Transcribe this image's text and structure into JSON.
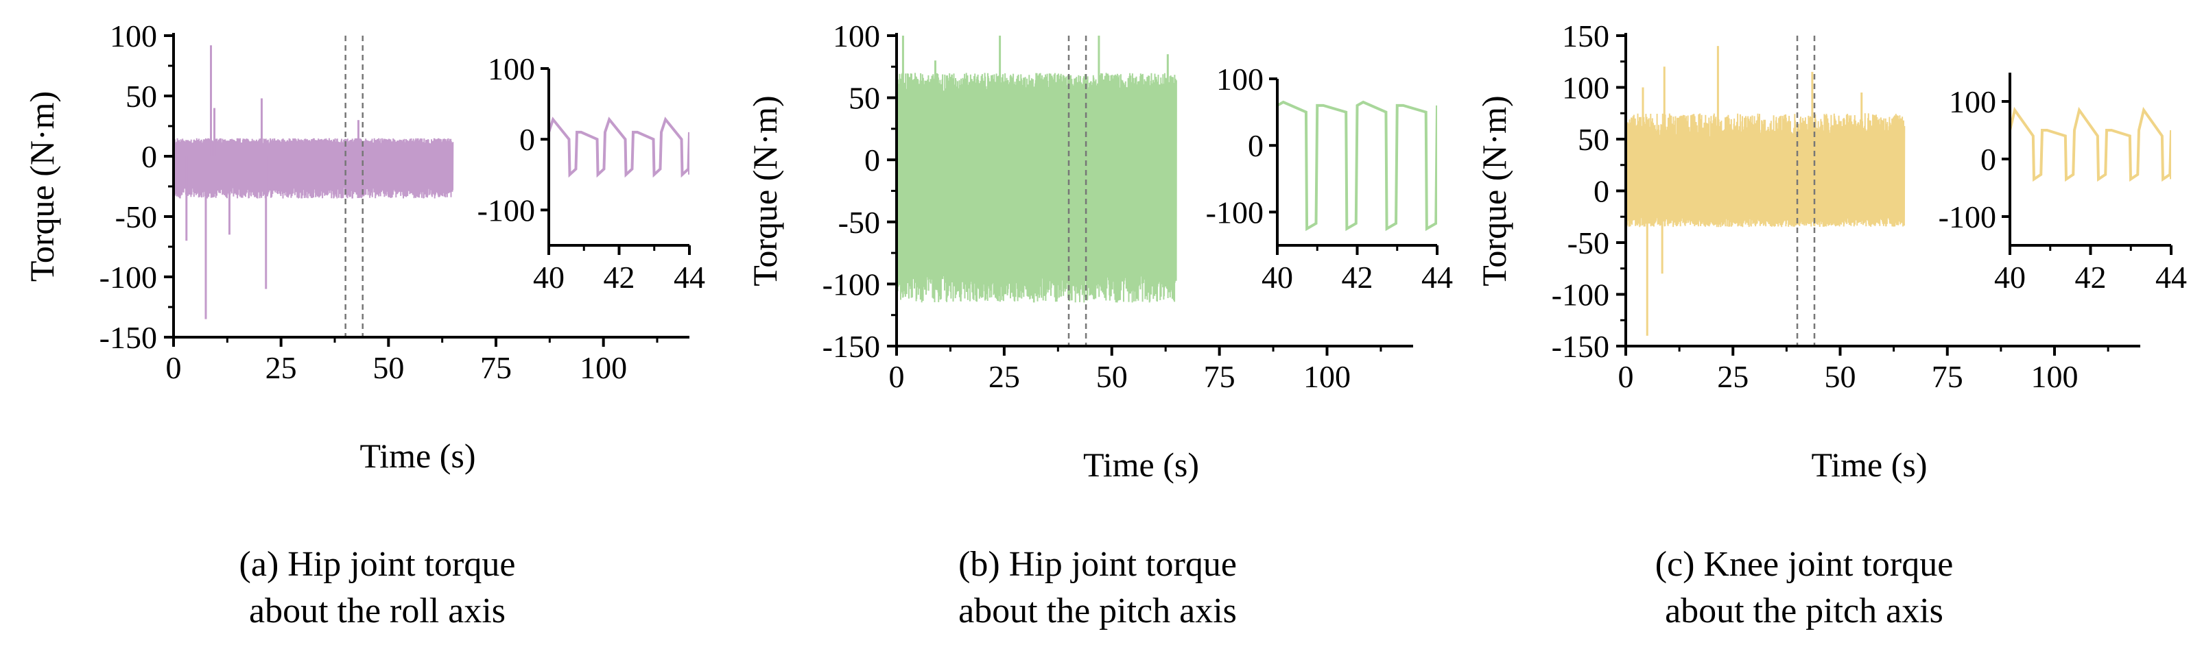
{
  "chart_data": [
    {
      "type": "line",
      "caption": [
        "(a) Hip joint torque",
        "about the roll axis"
      ],
      "color": "#c39bcb",
      "xlabel": "Time (s)",
      "ylabel": "Torque (N·m)",
      "xlim": [
        0,
        120
      ],
      "ylim": [
        -150,
        100
      ],
      "xticks": [
        0,
        25,
        50,
        75,
        100
      ],
      "yticks": [
        -150,
        -100,
        -50,
        0,
        50,
        100
      ],
      "data_range": [
        0,
        65
      ],
      "zoom_window": [
        40,
        44
      ],
      "band": {
        "upper": [
          10,
          15
        ],
        "lower": [
          -35,
          -45
        ]
      },
      "spikes": [
        {
          "x": 8.7,
          "y": 92
        },
        {
          "x": 7.5,
          "y": -135
        },
        {
          "x": 9.5,
          "y": 40
        },
        {
          "x": 21.5,
          "y": -110
        },
        {
          "x": 20.5,
          "y": 48
        },
        {
          "x": 13,
          "y": -65
        },
        {
          "x": 3,
          "y": -70
        },
        {
          "x": 43,
          "y": 30
        }
      ],
      "inset": {
        "xlim": [
          40,
          44
        ],
        "ylim": [
          -150,
          100
        ],
        "xticks": [
          40,
          42,
          44
        ],
        "yticks": [
          -100,
          0,
          100
        ],
        "period": 0.8,
        "high": 10,
        "low": -50,
        "spike": 28
      }
    },
    {
      "type": "line",
      "caption": [
        "(b) Hip joint torque",
        "about the pitch axis"
      ],
      "color": "#a8d79a",
      "xlabel": "Time (s)",
      "ylabel": "Torque (N·m)",
      "xlim": [
        0,
        120
      ],
      "ylim": [
        -150,
        100
      ],
      "xticks": [
        0,
        25,
        50,
        75,
        100
      ],
      "yticks": [
        -150,
        -100,
        -50,
        0,
        50,
        100
      ],
      "data_range": [
        0,
        65
      ],
      "zoom_window": [
        40,
        44
      ],
      "band": {
        "upper": [
          55,
          70
        ],
        "lower": [
          -115,
          -140
        ]
      },
      "spikes": [
        {
          "x": 1.5,
          "y": 100
        },
        {
          "x": 24,
          "y": 100
        },
        {
          "x": 47,
          "y": 100
        },
        {
          "x": 9,
          "y": 80
        },
        {
          "x": 63,
          "y": 85
        }
      ],
      "inset": {
        "xlim": [
          40,
          44
        ],
        "ylim": [
          -150,
          100
        ],
        "xticks": [
          40,
          42,
          44
        ],
        "yticks": [
          -100,
          0,
          100
        ],
        "period": 1.0,
        "high": 60,
        "low": -125,
        "spike": 65
      }
    },
    {
      "type": "line",
      "caption": [
        "(c) Knee joint torque",
        "about the pitch axis"
      ],
      "color": "#f0d487",
      "xlabel": "Time (s)",
      "ylabel": "Torque (N·m)",
      "xlim": [
        0,
        120
      ],
      "ylim": [
        -150,
        150
      ],
      "xticks": [
        0,
        25,
        50,
        75,
        100
      ],
      "yticks": [
        -150,
        -100,
        -50,
        0,
        50,
        100,
        150
      ],
      "data_range": [
        0,
        65
      ],
      "zoom_window": [
        40,
        44
      ],
      "band": {
        "upper": [
          50,
          75
        ],
        "lower": [
          -35,
          -45
        ]
      },
      "spikes": [
        {
          "x": 9,
          "y": 120
        },
        {
          "x": 21.5,
          "y": 140
        },
        {
          "x": 43.5,
          "y": 115
        },
        {
          "x": 4,
          "y": 100
        },
        {
          "x": 8.5,
          "y": -80
        },
        {
          "x": 5,
          "y": -140
        },
        {
          "x": 55,
          "y": 95
        }
      ],
      "inset": {
        "xlim": [
          40,
          44
        ],
        "ylim": [
          -150,
          150
        ],
        "xticks": [
          40,
          42,
          44
        ],
        "yticks": [
          -100,
          0,
          100
        ],
        "period": 0.8,
        "high": 50,
        "low": -35,
        "spike": 85
      }
    }
  ]
}
